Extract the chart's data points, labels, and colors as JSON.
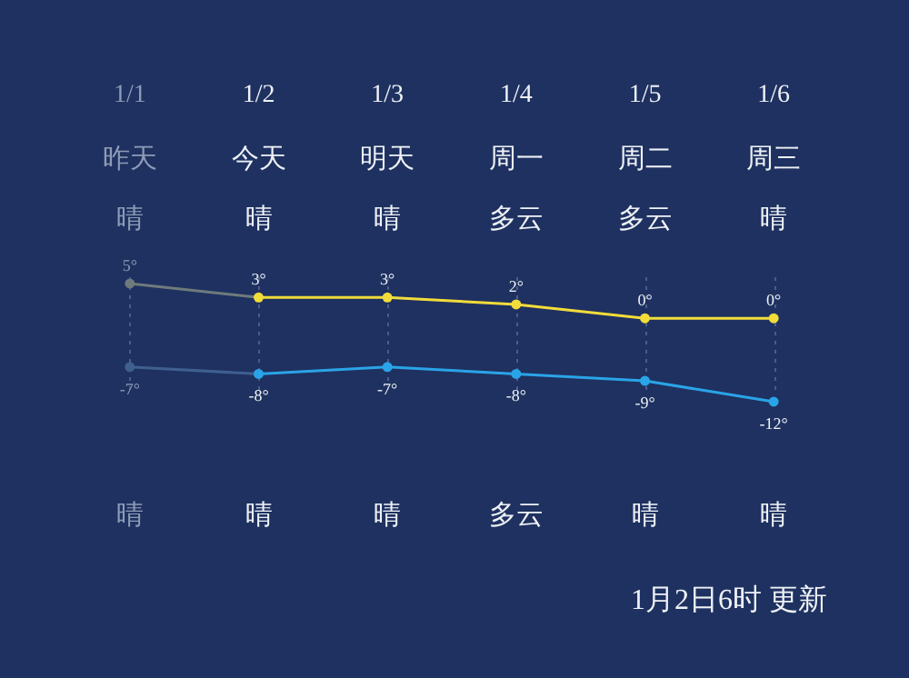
{
  "chart_data": {
    "type": "line",
    "categories": [
      "1/1",
      "1/2",
      "1/3",
      "1/4",
      "1/5",
      "1/6"
    ],
    "series": [
      {
        "color": "#f2dc3a",
        "colors": [
          "#6f7a7c",
          "#f2dc3a",
          "#f2dc3a",
          "#f2dc3a",
          "#f2dc3a",
          "#f2dc3a"
        ],
        "values": [
          5,
          3,
          3,
          2,
          0,
          0
        ],
        "value_labels": [
          "5°",
          "3°",
          "3°",
          "2°",
          "0°",
          "0°"
        ]
      },
      {
        "color": "#2aa4e8",
        "colors": [
          "#3f5f8f",
          "#2aa4e8",
          "#2aa4e8",
          "#2aa4e8",
          "#2aa4e8",
          "#2aa4e8"
        ],
        "values": [
          -7,
          -8,
          -7,
          -8,
          -9,
          -12
        ],
        "value_labels": [
          "-7°",
          "-8°",
          "-7°",
          "-8°",
          "-9°",
          "-12°"
        ]
      }
    ],
    "annotations": [
      "昨天",
      "今天",
      "明天",
      "周一",
      "周二",
      "周三",
      "晴",
      "晴",
      "晴",
      "多云",
      "多云",
      "晴",
      "晴",
      "晴",
      "晴",
      "多云",
      "晴",
      "晴",
      "1月2日6时 更新"
    ],
    "grid": "x",
    "marker": "circle",
    "line_style": "solid",
    "legend": false
  }
}
